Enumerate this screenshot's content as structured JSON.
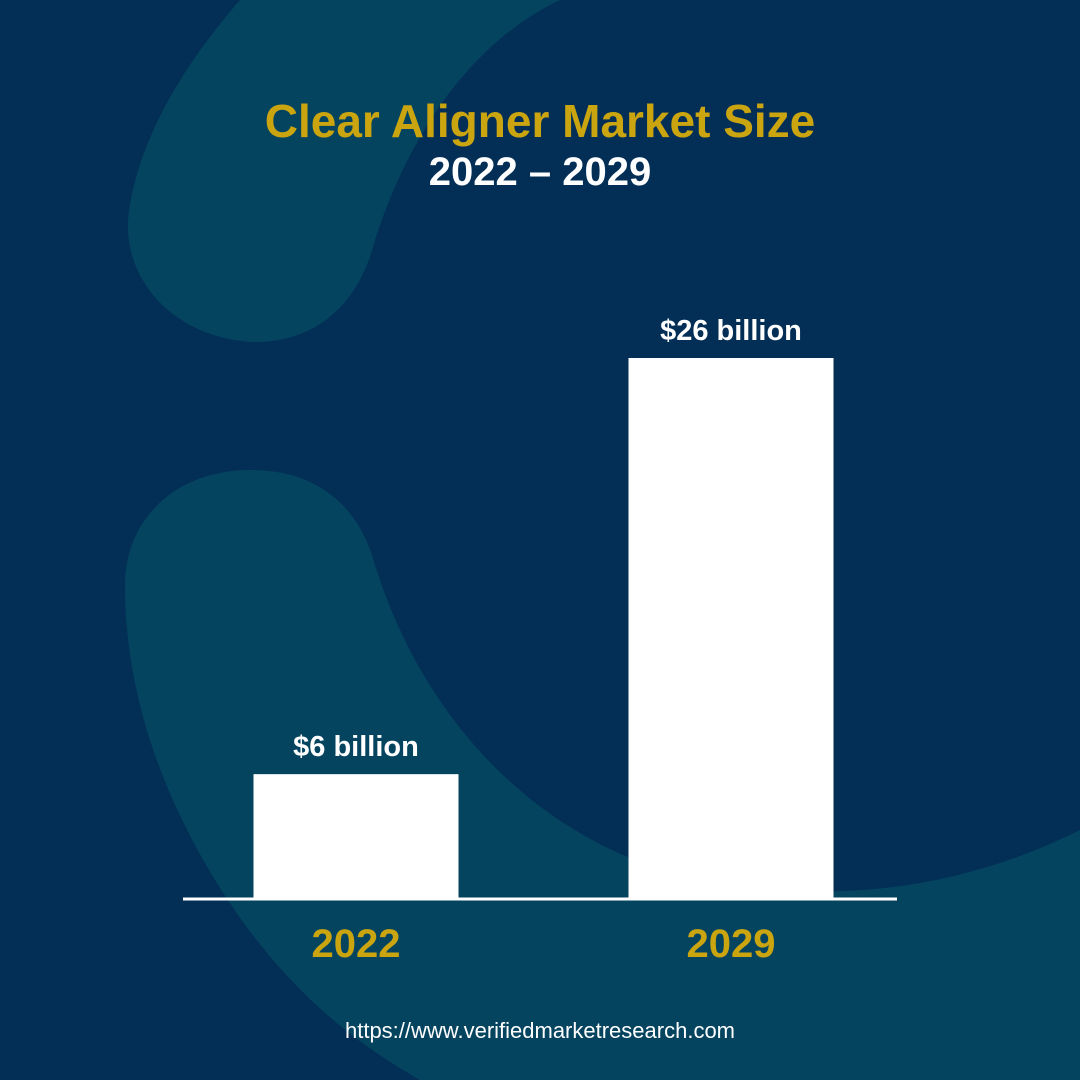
{
  "colors": {
    "background": "#032f57",
    "accent_shape": "#04445f",
    "title": "#cba50f",
    "subtitle": "#ffffff",
    "bar": "#ffffff",
    "value_label": "#ffffff",
    "category_label": "#cba50f",
    "axis_line": "#ffffff"
  },
  "footer": {
    "source_url": "https://www.verifiedmarketresearch.com"
  },
  "chart_data": {
    "type": "bar",
    "title": "Clear Aligner Market Size",
    "subtitle": "2022 – 2029",
    "xlabel": "",
    "ylabel": "",
    "categories": [
      "2022",
      "2029"
    ],
    "values": [
      6,
      26
    ],
    "value_labels": [
      "$6 billion",
      "$26 billion"
    ],
    "unit": "billion USD",
    "ylim": [
      0,
      26
    ],
    "grid": false,
    "legend": "none"
  }
}
